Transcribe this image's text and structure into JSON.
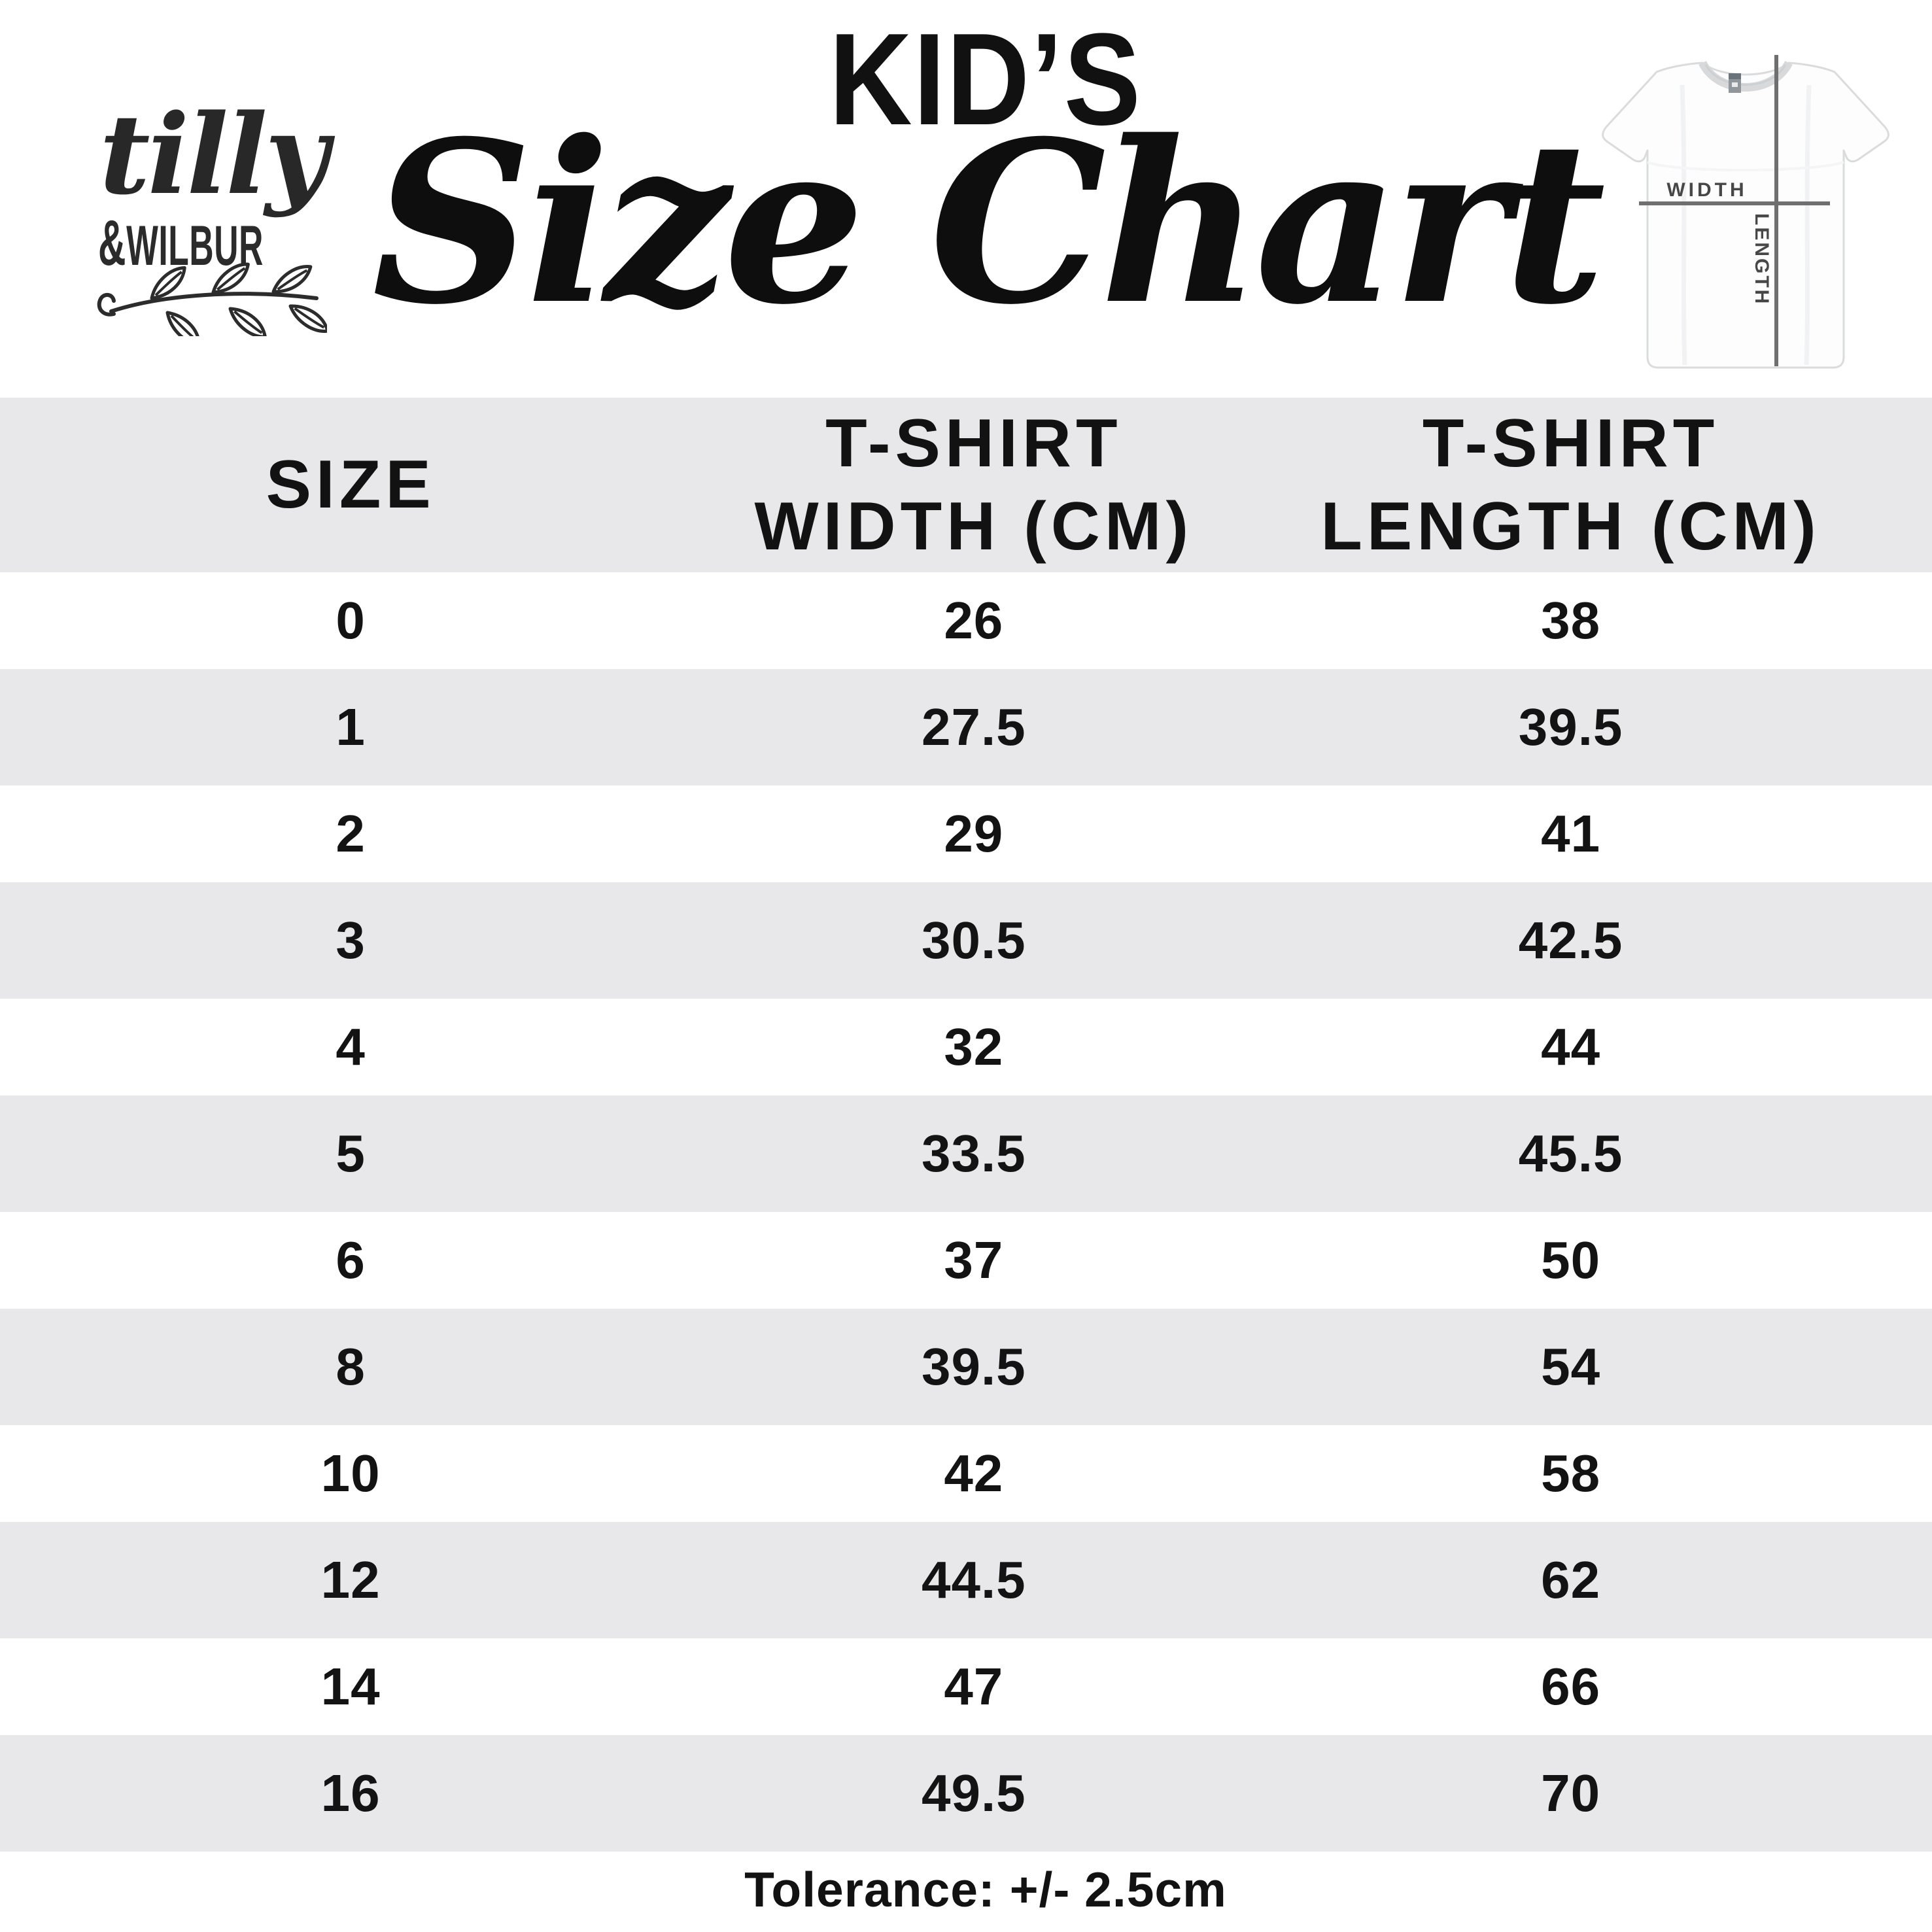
{
  "page": {
    "background": "#ffffff",
    "stripe_color": "#e8e8ea",
    "text_color": "#131313"
  },
  "brand": {
    "script": "tilly",
    "amp": "&",
    "rest": "WILBUR"
  },
  "title": {
    "kicker": "KID’S",
    "main": "Size Chart"
  },
  "tshirt_diagram": {
    "width_label": "WIDTH",
    "length_label": "LENGTH",
    "line_color": "#6f6f6f",
    "label_color": "#474747",
    "shirt_outline_color": "#d9dbdd"
  },
  "table": {
    "columns": [
      {
        "key": "size",
        "lines": [
          "SIZE"
        ]
      },
      {
        "key": "width",
        "lines": [
          "T-SHIRT",
          "WIDTH (CM)"
        ]
      },
      {
        "key": "length",
        "lines": [
          "T-SHIRT",
          "LENGTH (CM)"
        ]
      }
    ]
  },
  "chart_data": {
    "type": "table",
    "title": "KID'S Size Chart",
    "columns": [
      "SIZE",
      "T-SHIRT WIDTH (CM)",
      "T-SHIRT LENGTH (CM)"
    ],
    "rows": [
      [
        0,
        26,
        38
      ],
      [
        1,
        27.5,
        39.5
      ],
      [
        2,
        29,
        41
      ],
      [
        3,
        30.5,
        42.5
      ],
      [
        4,
        32,
        44
      ],
      [
        5,
        33.5,
        45.5
      ],
      [
        6,
        37,
        50
      ],
      [
        8,
        39.5,
        54
      ],
      [
        10,
        42,
        58
      ],
      [
        12,
        44.5,
        62
      ],
      [
        14,
        47,
        66
      ],
      [
        16,
        49.5,
        70
      ]
    ],
    "note": "Tolerance: +/- 2.5cm"
  },
  "footer": {
    "tolerance": "Tolerance: +/- 2.5cm"
  }
}
